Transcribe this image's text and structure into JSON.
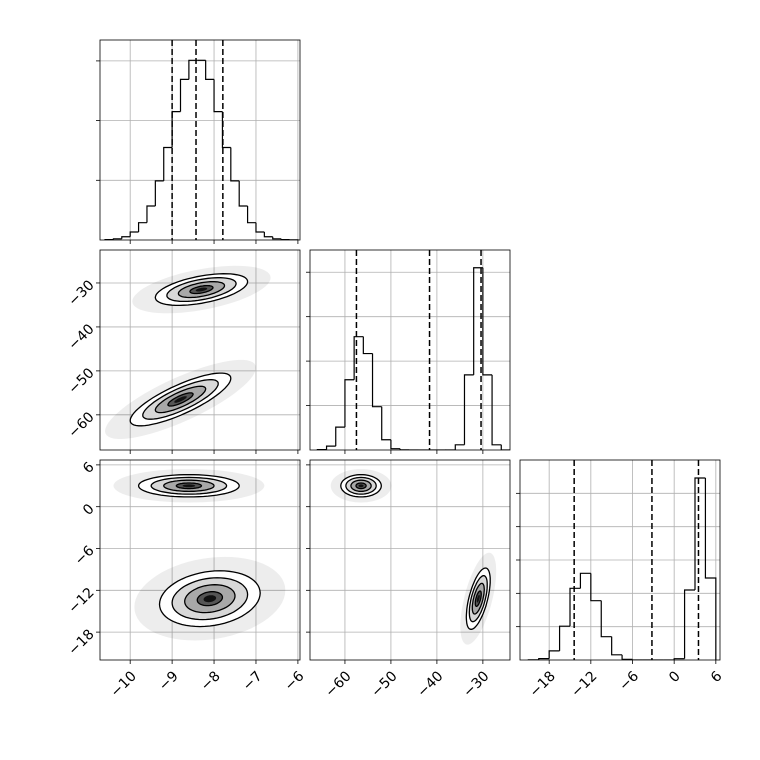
{
  "chart_data": [
    {
      "type": "histogram",
      "bins": [
        -10.6,
        -10.4,
        -10.2,
        -10,
        -9.8,
        -9.6,
        -9.4,
        -9.2,
        -9,
        -8.8,
        -8.6,
        -8.4,
        -8.2,
        -8,
        -7.8,
        -7.6,
        -7.4,
        -7.2,
        -7,
        -6.8,
        -6.6,
        -6.4,
        -6.2,
        -6
      ],
      "values": [
        7,
        20,
        55,
        134,
        290,
        570,
        990,
        1550,
        2150,
        2690,
        3010,
        3010,
        2690,
        2150,
        1550,
        990,
        570,
        290,
        134,
        55,
        20,
        7,
        2
      ],
      "quantiles": [
        -9.0,
        -8.43,
        -7.79
      ],
      "xlim": [
        -10.72,
        -5.95
      ],
      "xticks": [
        -10,
        -9,
        -8,
        -7,
        -6
      ],
      "show_xtick_labels": false,
      "ylim": [
        0,
        3350
      ],
      "yticks": [
        1000,
        2000,
        3000
      ],
      "show_ytick_labels": false,
      "grid": true
    },
    {
      "type": "contour",
      "clusters": [
        {
          "x": -8.3,
          "y": -31.5,
          "sx": 0.55,
          "sy": 1.8,
          "corr": 0.5
        },
        {
          "x": -8.8,
          "y": -56.5,
          "sx": 0.6,
          "sy": 3.0,
          "corr": 0.8
        }
      ],
      "xlim": [
        -10.72,
        -5.95
      ],
      "xticks": [
        -10,
        -9,
        -8,
        -7,
        -6
      ],
      "show_xtick_labels": false,
      "ylim": [
        -68,
        -22.5
      ],
      "yticks": [
        {
          "value": -30,
          "label": "−30"
        },
        {
          "value": -40,
          "label": "−40"
        },
        {
          "value": -50,
          "label": "−50"
        },
        {
          "value": -60,
          "label": "−60"
        }
      ],
      "show_ytick_labels": true,
      "grid": true
    },
    {
      "type": "histogram",
      "bins": [
        -66,
        -64,
        -62,
        -60,
        -58,
        -56,
        -54,
        -52,
        -50,
        -48,
        -46,
        -44,
        -42,
        -40,
        -38,
        -36,
        -34,
        -32,
        -30,
        -28,
        -26,
        -24
      ],
      "values": [
        8,
        88,
        515,
        1580,
        2550,
        2170,
        975,
        230,
        29,
        2,
        0,
        0,
        0,
        0,
        1,
        117,
        1690,
        4100,
        1690,
        117,
        1
      ],
      "quantiles": [
        -57.5,
        -41.6,
        -30.4
      ],
      "xlim": [
        -67.6,
        -24.1
      ],
      "xticks": [
        -60,
        -50,
        -40,
        -30
      ],
      "show_xtick_labels": false,
      "ylim": [
        0,
        4500
      ],
      "yticks": [
        1000,
        2000,
        3000,
        4000
      ],
      "show_ytick_labels": false,
      "grid": true
    },
    {
      "type": "contour",
      "clusters": [
        {
          "x": -8.6,
          "y": 3.0,
          "sx": 0.6,
          "sy": 0.8,
          "corr": 0.0
        },
        {
          "x": -8.1,
          "y": -13.2,
          "sx": 0.6,
          "sy": 2.0,
          "corr": 0.2
        }
      ],
      "xlim": [
        -10.72,
        -5.95
      ],
      "xticks": [
        {
          "value": -10,
          "label": "−10"
        },
        {
          "value": -9,
          "label": "−9"
        },
        {
          "value": -8,
          "label": "−8"
        },
        {
          "value": -7,
          "label": "−7"
        },
        {
          "value": -6,
          "label": "−6"
        }
      ],
      "show_xtick_labels": true,
      "ylim": [
        -22,
        6.7
      ],
      "yticks": [
        6,
        0,
        {
          "value": -6,
          "label": "−6"
        },
        {
          "value": -12,
          "label": "−12"
        },
        {
          "value": -18,
          "label": "−18"
        }
      ],
      "show_ytick_labels": true,
      "grid": true
    },
    {
      "type": "contour",
      "clusters": [
        {
          "x": -56.5,
          "y": 3.0,
          "sx": 2.2,
          "sy": 0.8,
          "corr": 0.0
        },
        {
          "x": -31.0,
          "y": -13.2,
          "sx": 1.3,
          "sy": 2.2,
          "corr": 0.6
        }
      ],
      "xlim": [
        -67.6,
        -24.1
      ],
      "xticks": [
        {
          "value": -60,
          "label": "−60"
        },
        {
          "value": -50,
          "label": "−50"
        },
        {
          "value": -40,
          "label": "−40"
        },
        {
          "value": -30,
          "label": "−30"
        }
      ],
      "show_xtick_labels": true,
      "ylim": [
        -22,
        6.7
      ],
      "yticks": [
        6,
        0,
        -6,
        -12,
        -18
      ],
      "show_ytick_labels": false,
      "grid": true
    },
    {
      "type": "histogram",
      "bins": [
        -21,
        -19.5,
        -18,
        -16.5,
        -15,
        -13.5,
        -12,
        -10.5,
        -9,
        -7.5,
        -6,
        -4.5,
        -3,
        -1.5,
        0,
        1.5,
        3,
        4.5,
        6
      ],
      "values": [
        4,
        42,
        273,
        1015,
        2150,
        2600,
        1780,
        700,
        155,
        20,
        2,
        0,
        0,
        0,
        40,
        2100,
        5460,
        2460
      ],
      "quantiles": [
        -14.4,
        -3.2,
        3.5
      ],
      "xlim": [
        -22.2,
        6.6
      ],
      "xticks": [
        {
          "value": -18,
          "label": "−18"
        },
        {
          "value": -12,
          "label": "−12"
        },
        {
          "value": -6,
          "label": "−6"
        },
        0,
        6
      ],
      "show_xtick_labels": true,
      "ylim": [
        0,
        6000
      ],
      "yticks": [
        1000,
        2000,
        3000,
        4000,
        5000
      ],
      "show_ytick_labels": false,
      "grid": true
    }
  ]
}
